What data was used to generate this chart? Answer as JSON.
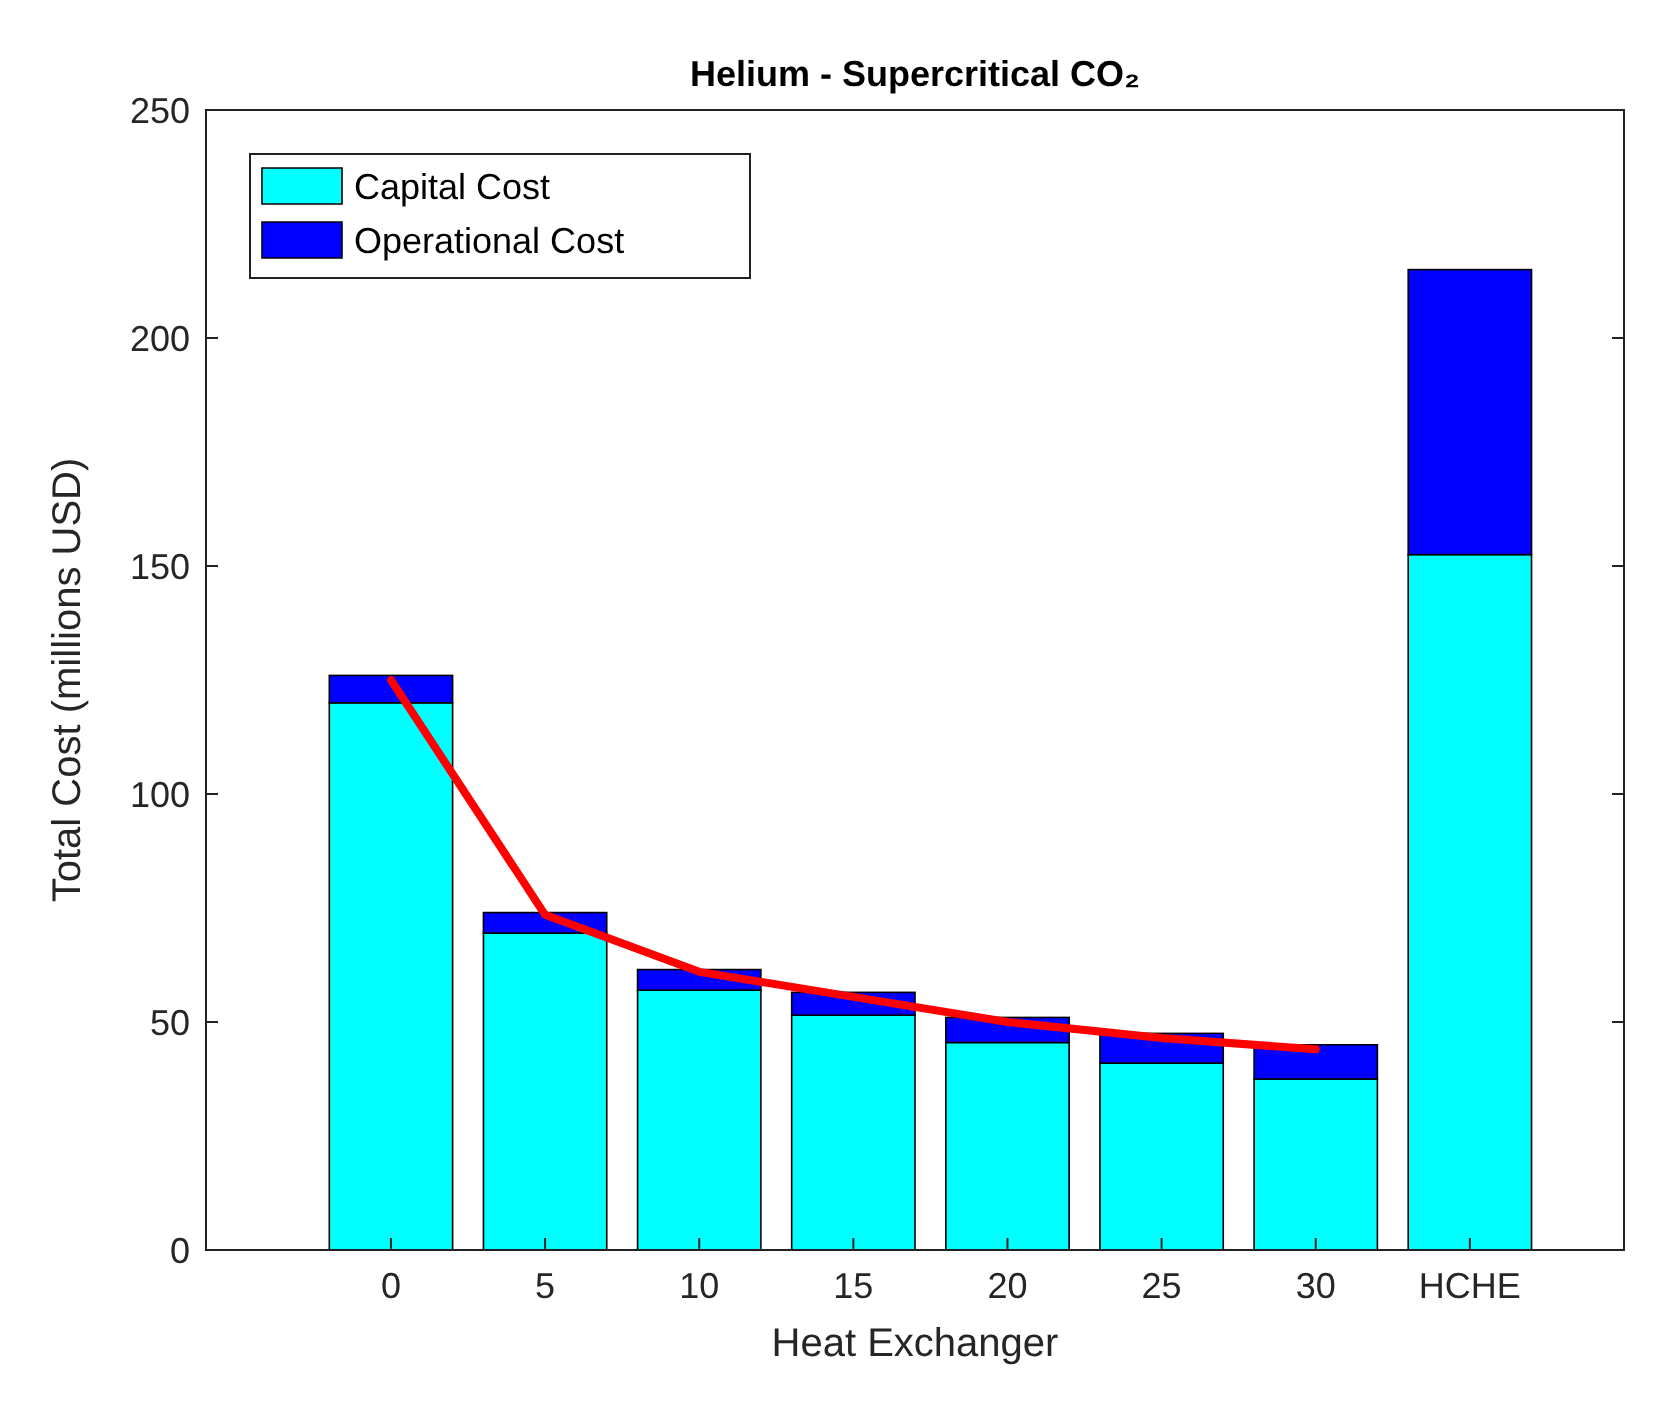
{
  "chart_data": {
    "type": "bar",
    "title": "Helium - Supercritical CO₂",
    "xlabel": "Heat Exchanger",
    "ylabel": "Total Cost (millions USD)",
    "categories": [
      "0",
      "5",
      "10",
      "15",
      "20",
      "25",
      "30",
      "HCHE"
    ],
    "stacked": true,
    "ylim": [
      0,
      250
    ],
    "yticks": [
      0,
      50,
      100,
      150,
      200,
      250
    ],
    "grid": false,
    "legend": "top left",
    "series": [
      {
        "name": "Capital Cost",
        "color": "#00ffff",
        "values": [
          120,
          69.5,
          57,
          51.5,
          45.5,
          41,
          37.5,
          152.5
        ]
      },
      {
        "name": "Operational Cost",
        "color": "#0000ff",
        "values": [
          6,
          4.5,
          4.5,
          5,
          5.5,
          6.5,
          7.5,
          62.5
        ]
      },
      {
        "type": "line",
        "color": "#ff0000",
        "x": [
          "0",
          "5",
          "10",
          "15",
          "20",
          "25",
          "30"
        ],
        "values": [
          125,
          73.5,
          61,
          55.5,
          50,
          46.5,
          44
        ]
      }
    ]
  }
}
